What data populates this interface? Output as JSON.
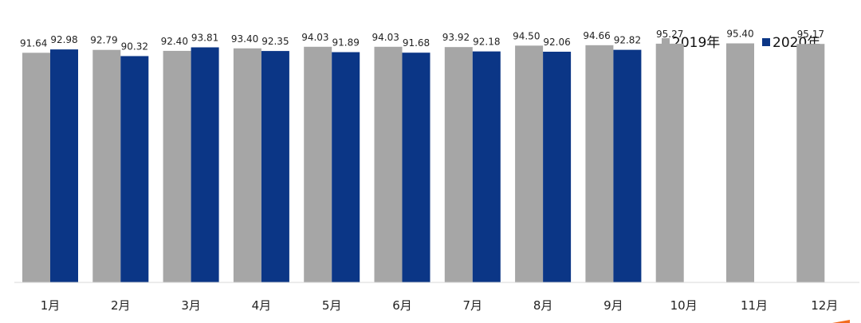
{
  "chart_data": {
    "type": "bar",
    "categories": [
      "1月",
      "2月",
      "3月",
      "4月",
      "5月",
      "6月",
      "7月",
      "8月",
      "9月",
      "10月",
      "11月",
      "12月"
    ],
    "series": [
      {
        "name": "2019年",
        "color": "#a6a6a6",
        "values": [
          91.64,
          92.79,
          92.4,
          93.4,
          94.03,
          94.03,
          93.92,
          94.5,
          94.66,
          95.27,
          95.4,
          95.17
        ]
      },
      {
        "name": "2020年",
        "color": "#0b3686",
        "values": [
          92.98,
          90.32,
          93.81,
          92.35,
          91.89,
          91.68,
          92.18,
          92.06,
          92.82,
          null,
          null,
          null
        ]
      }
    ],
    "data_labels": true,
    "legend_position": "top-right",
    "grid": false,
    "ylim": [
      0,
      100
    ]
  }
}
